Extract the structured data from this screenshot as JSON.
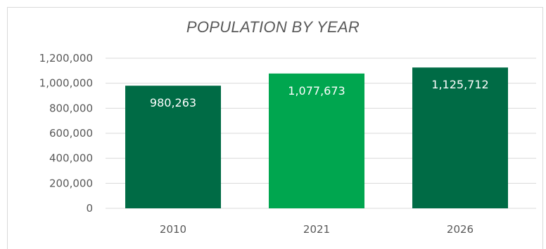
{
  "chart_data": {
    "type": "bar",
    "title": "POPULATION BY YEAR",
    "categories": [
      "2010",
      "2021",
      "2026"
    ],
    "values": [
      980263,
      1077673,
      1125712
    ],
    "data_labels": [
      "980,263",
      "1,077,673",
      "1,125,712"
    ],
    "ylim": [
      0,
      1200000
    ],
    "yticks": [
      0,
      200000,
      400000,
      600000,
      800000,
      1000000,
      1200000
    ],
    "ytick_labels": [
      "0",
      "200,000",
      "400,000",
      "600,000",
      "800,000",
      "1,000,000",
      "1,200,000"
    ],
    "grid": true,
    "legend": "none",
    "colors": [
      "#006b45",
      "#00a64f",
      "#006b45"
    ],
    "gridline_color": "#d9d9d9"
  }
}
